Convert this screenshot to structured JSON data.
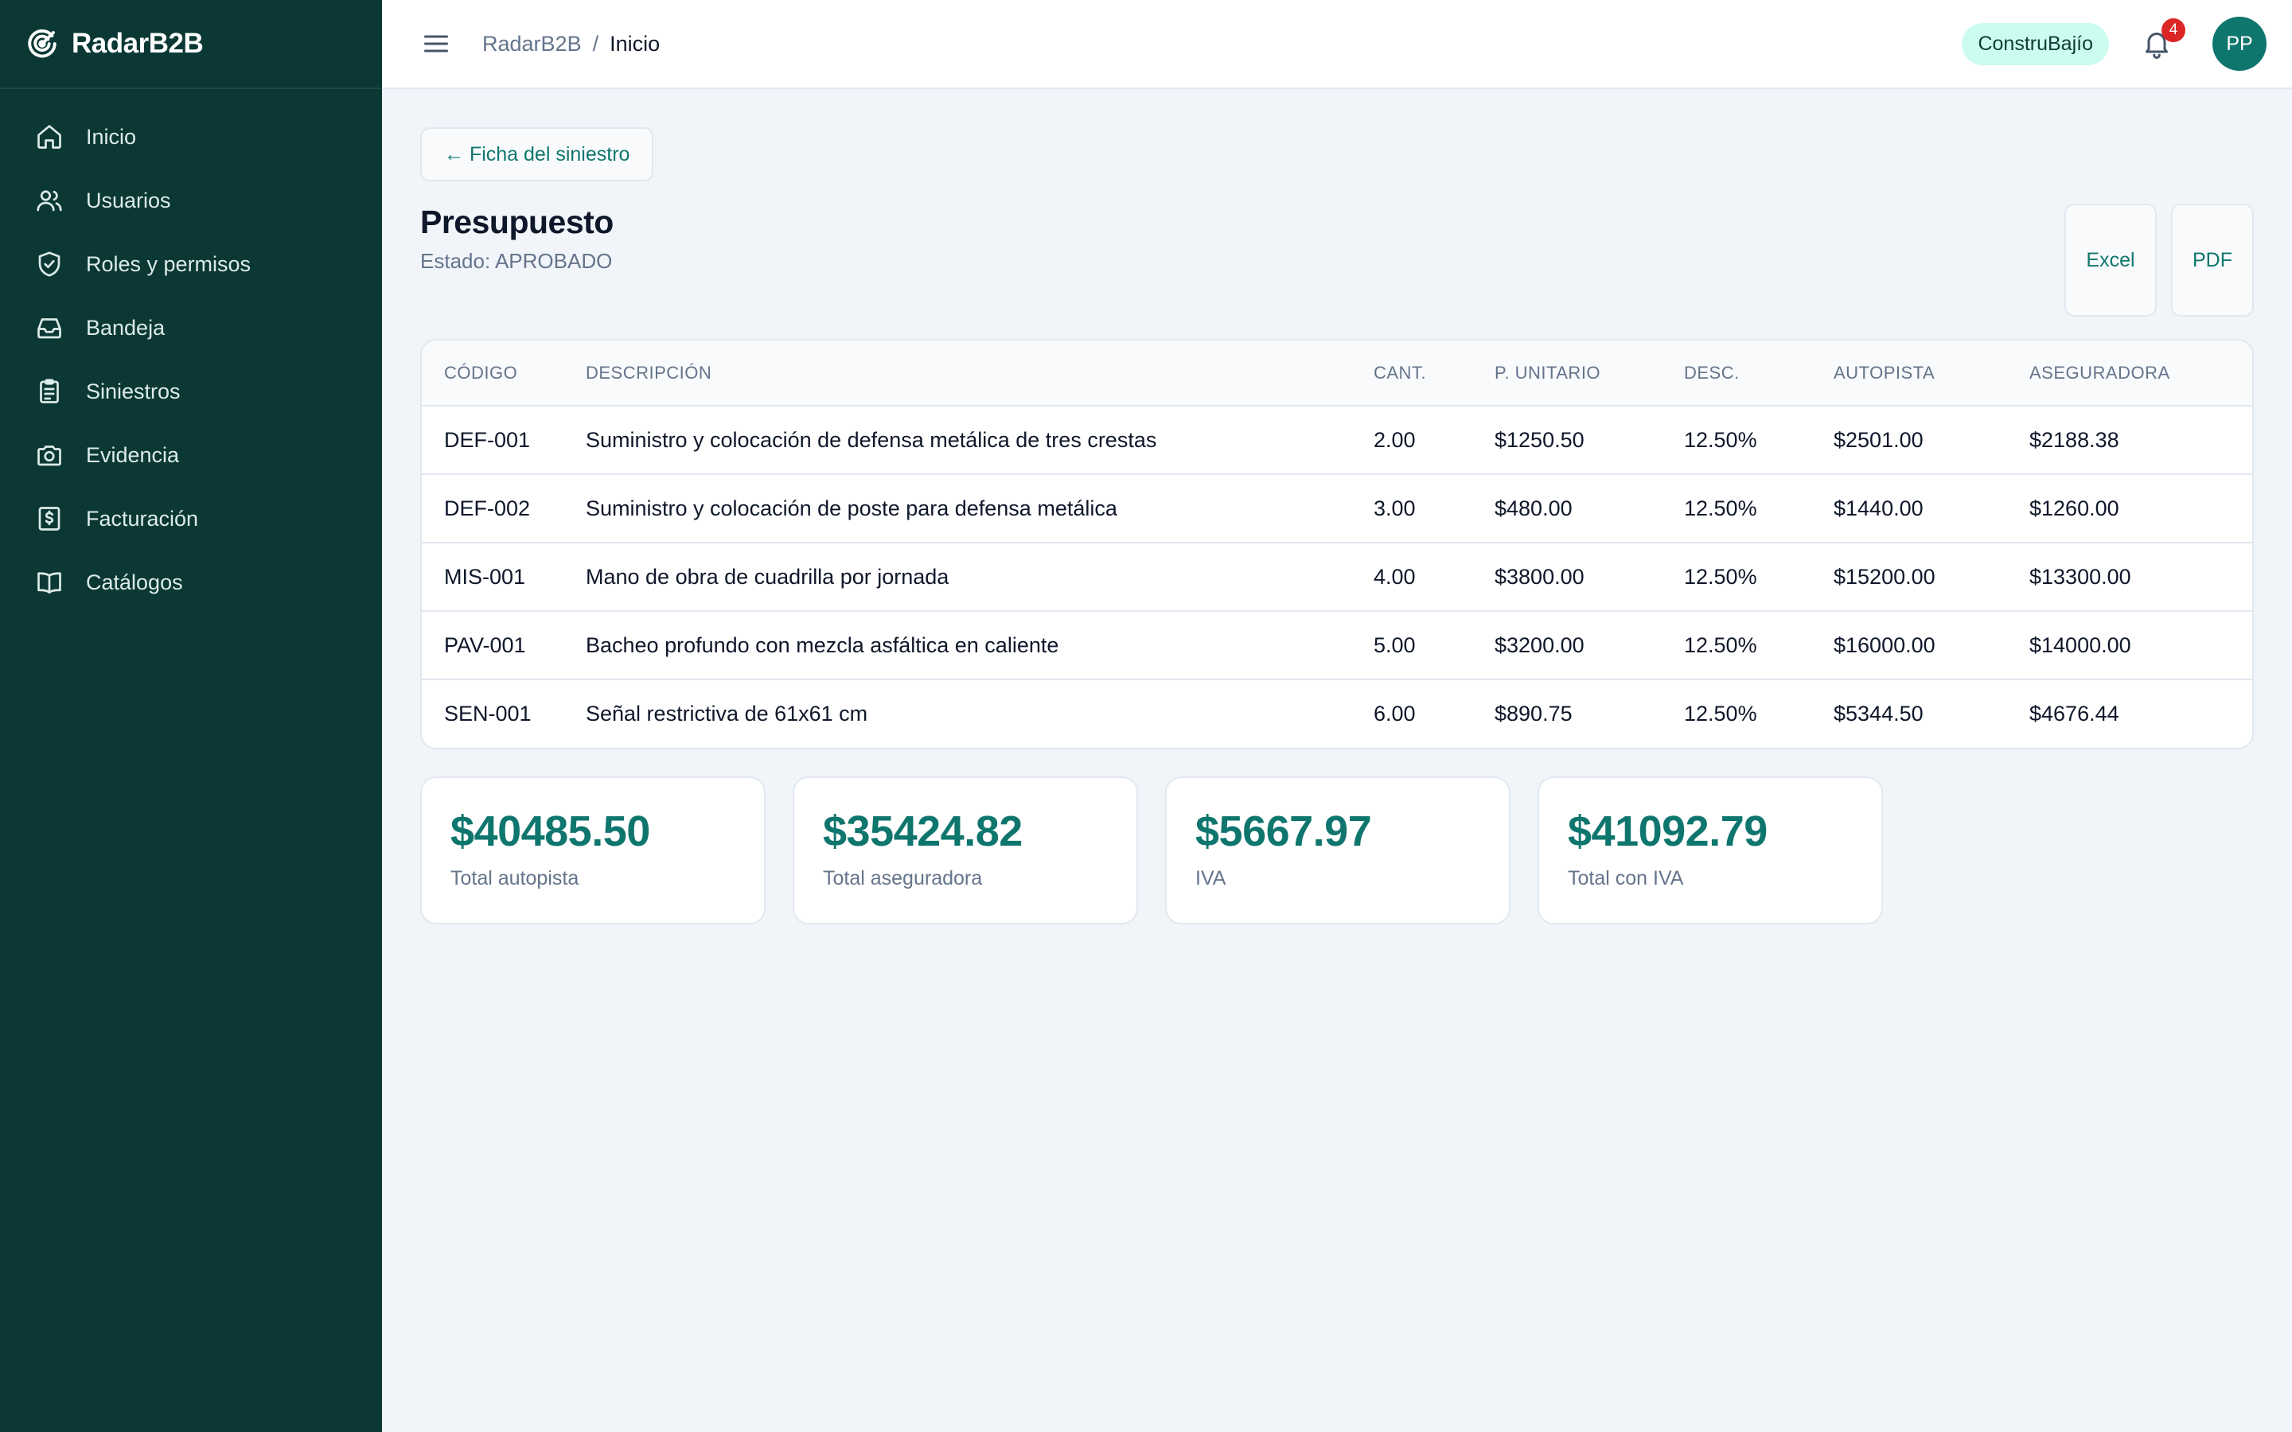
{
  "app": {
    "name": "RadarB2B"
  },
  "sidebar": {
    "items": [
      {
        "label": "Inicio",
        "icon": "home-icon"
      },
      {
        "label": "Usuarios",
        "icon": "users-icon"
      },
      {
        "label": "Roles y permisos",
        "icon": "shield-check-icon"
      },
      {
        "label": "Bandeja",
        "icon": "inbox-icon"
      },
      {
        "label": "Siniestros",
        "icon": "clipboard-icon"
      },
      {
        "label": "Evidencia",
        "icon": "camera-icon"
      },
      {
        "label": "Facturación",
        "icon": "receipt-icon"
      },
      {
        "label": "Catálogos",
        "icon": "book-icon"
      }
    ]
  },
  "header": {
    "breadcrumb_root": "RadarB2B",
    "breadcrumb_separator": "/",
    "breadcrumb_current": "Inicio",
    "tenant": "ConstruBajío",
    "notifications_count": "4",
    "avatar_initials": "PP"
  },
  "page": {
    "back_label": "← Ficha del siniestro",
    "title": "Presupuesto",
    "status": "Estado: APROBADO",
    "excel_label": "Excel",
    "pdf_label": "PDF"
  },
  "table": {
    "headers": [
      "CÓDIGO",
      "DESCRIPCIÓN",
      "CANT.",
      "P. UNITARIO",
      "DESC.",
      "AUTOPISTA",
      "ASEGURADORA"
    ],
    "rows": [
      [
        "DEF-001",
        "Suministro y colocación de defensa metálica de tres crestas",
        "2.00",
        "$1250.50",
        "12.50%",
        "$2501.00",
        "$2188.38"
      ],
      [
        "DEF-002",
        "Suministro y colocación de poste para defensa metálica",
        "3.00",
        "$480.00",
        "12.50%",
        "$1440.00",
        "$1260.00"
      ],
      [
        "MIS-001",
        "Mano de obra de cuadrilla por jornada",
        "4.00",
        "$3800.00",
        "12.50%",
        "$15200.00",
        "$13300.00"
      ],
      [
        "PAV-001",
        "Bacheo profundo con mezcla asfáltica en caliente",
        "5.00",
        "$3200.00",
        "12.50%",
        "$16000.00",
        "$14000.00"
      ],
      [
        "SEN-001",
        "Señal restrictiva de 61x61 cm",
        "6.00",
        "$890.75",
        "12.50%",
        "$5344.50",
        "$4676.44"
      ]
    ]
  },
  "totals": [
    {
      "value": "$40485.50",
      "label": "Total autopista"
    },
    {
      "value": "$35424.82",
      "label": "Total aseguradora"
    },
    {
      "value": "$5667.97",
      "label": "IVA"
    },
    {
      "value": "$41092.79",
      "label": "Total con IVA"
    }
  ],
  "colors": {
    "sidebar": "#0b3835",
    "accent": "#0f766e",
    "badge": "#dc2626",
    "tenant_bg": "#ccfbef"
  }
}
